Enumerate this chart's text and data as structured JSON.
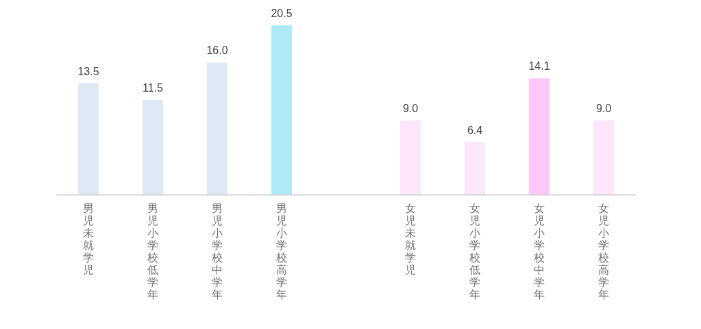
{
  "chart_data": {
    "type": "bar",
    "categories": [
      "男児未就学児",
      "男児小学校低学年",
      "男児小学校中学年",
      "男児小学校高学年",
      null,
      "女児未就学児",
      "女児小学校低学年",
      "女児小学校中学年",
      "女児小学校高学年"
    ],
    "values": [
      13.5,
      11.5,
      16.0,
      20.5,
      null,
      9.0,
      6.4,
      14.1,
      9.0
    ],
    "value_labels": [
      "13.5",
      "11.5",
      "16.0",
      "20.5",
      null,
      "9.0",
      "6.4",
      "14.1",
      "9.0"
    ],
    "colors": [
      "#dde9f5",
      "#dde9f5",
      "#dde9f5",
      "#aee9f8",
      null,
      "#fde6fb",
      "#fde6fb",
      "#fbc8f9",
      "#fde6fb"
    ],
    "data_labels": false
  }
}
